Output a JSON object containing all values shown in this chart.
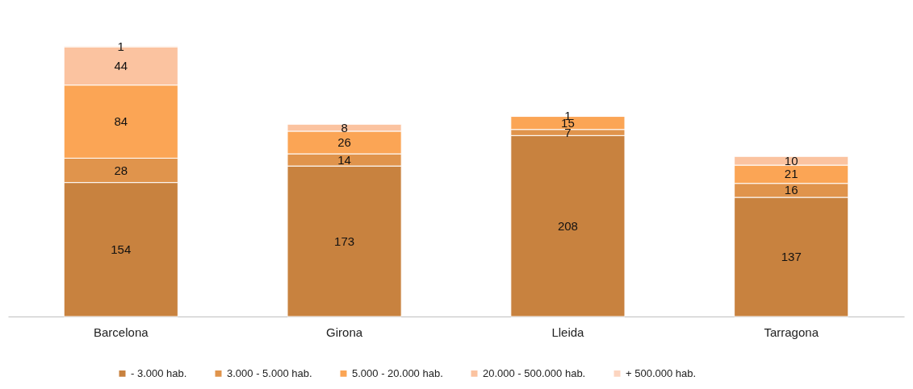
{
  "chart_data": {
    "type": "bar",
    "stacked": true,
    "data_labels": true,
    "legend": "bottom",
    "categories": [
      "Barcelona",
      "Girona",
      "Lleida",
      "Tarragona"
    ],
    "series": [
      {
        "name": "- 3.000 hab.",
        "color": "#c8823f",
        "values": [
          154,
          173,
          208,
          137
        ]
      },
      {
        "name": "3.000 - 5.000 hab.",
        "color": "#e0944c",
        "values": [
          28,
          14,
          7,
          16
        ]
      },
      {
        "name": "5.000 - 20.000 hab.",
        "color": "#fba555",
        "values": [
          84,
          26,
          15,
          21
        ]
      },
      {
        "name": "20.000 - 500.000 hab.",
        "color": "#fbc3a0",
        "values": [
          44,
          8,
          1,
          10
        ]
      },
      {
        "name": "+ 500.000 hab.",
        "color": "#fcd5c0",
        "values": [
          1,
          null,
          null,
          null
        ]
      }
    ]
  }
}
